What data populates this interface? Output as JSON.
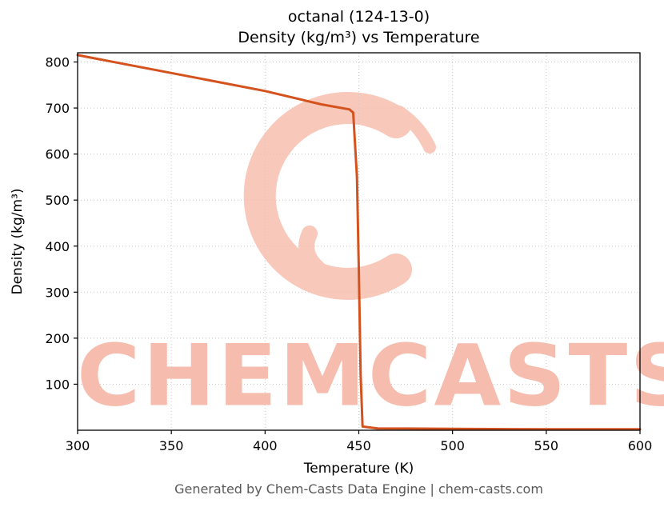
{
  "title": {
    "line1": "octanal (124-13-0)",
    "line2": "Density (kg/m³) vs Temperature"
  },
  "footer": "Generated by Chem-Casts Data Engine | chem-casts.com",
  "watermark": {
    "text": "CHEMCASTS",
    "text_color": "#f6bcae",
    "logo_color": "#f8c8bb"
  },
  "chart_data": {
    "type": "line",
    "title": "octanal (124-13-0) Density (kg/m³) vs Temperature",
    "xlabel": "Temperature (K)",
    "ylabel": "Density (kg/m³)",
    "xlim": [
      300,
      600
    ],
    "ylim": [
      0,
      820
    ],
    "xticks": [
      300,
      350,
      400,
      450,
      500,
      550,
      600
    ],
    "yticks": [
      100,
      200,
      300,
      400,
      500,
      600,
      700,
      800
    ],
    "grid": true,
    "legend": false,
    "line_color": "#d4521e",
    "line_width": 3,
    "series": [
      {
        "name": "Density",
        "points": [
          [
            300,
            815
          ],
          [
            350,
            776
          ],
          [
            400,
            737
          ],
          [
            430,
            708
          ],
          [
            445,
            697
          ],
          [
            447,
            690
          ],
          [
            449,
            550
          ],
          [
            450,
            350
          ],
          [
            451,
            120
          ],
          [
            452,
            8
          ],
          [
            460,
            4
          ],
          [
            500,
            3
          ],
          [
            550,
            2
          ],
          [
            600,
            2
          ]
        ]
      }
    ]
  }
}
